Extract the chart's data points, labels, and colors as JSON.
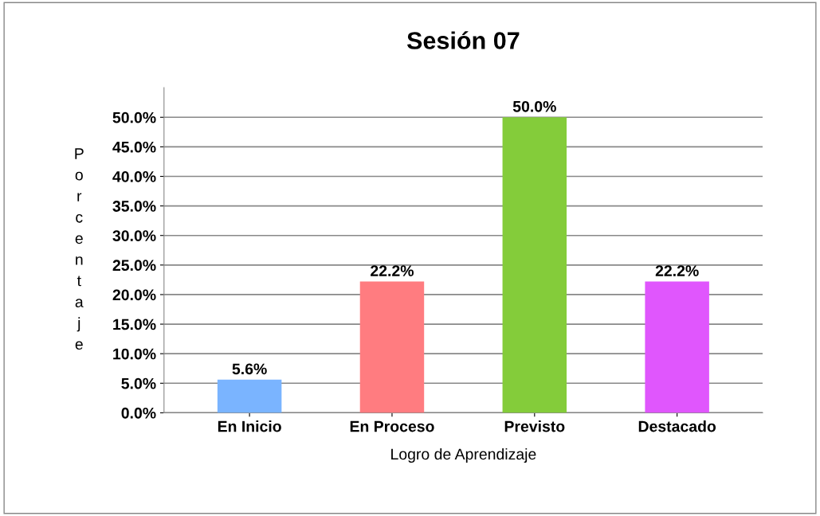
{
  "chart_data": {
    "type": "bar",
    "title": "Sesión 07",
    "xlabel": "Logro de Aprendizaje",
    "ylabel": "Porcentaje",
    "categories": [
      "En Inicio",
      "En Proceso",
      "Previsto",
      "Destacado"
    ],
    "values": [
      5.6,
      22.2,
      50.0,
      22.2
    ],
    "value_labels": [
      "5.6%",
      "22.2%",
      "50.0%",
      "22.2%"
    ],
    "colors": [
      "#7ab4ff",
      "#ff7c80",
      "#84cc3a",
      "#e056fd"
    ],
    "ylim": [
      0,
      55
    ],
    "yticks": [
      {
        "value": 0,
        "label": "0.0%"
      },
      {
        "value": 5,
        "label": "5.0%"
      },
      {
        "value": 10,
        "label": "10.0%"
      },
      {
        "value": 15,
        "label": "15.0%"
      },
      {
        "value": 20,
        "label": "20.0%"
      },
      {
        "value": 25,
        "label": "25.0%"
      },
      {
        "value": 30,
        "label": "30.0%"
      },
      {
        "value": 35,
        "label": "35.0%"
      },
      {
        "value": 40,
        "label": "40.0%"
      },
      {
        "value": 45,
        "label": "45.0%"
      },
      {
        "value": 50,
        "label": "50.0%"
      }
    ],
    "grid": "y"
  }
}
